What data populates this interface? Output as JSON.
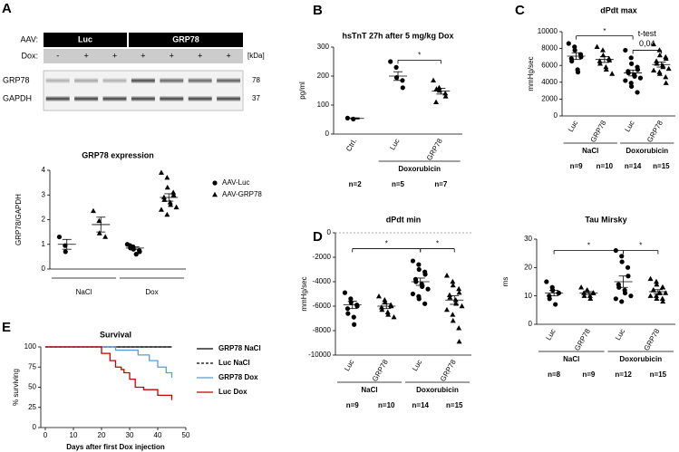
{
  "panel_labels": [
    "A",
    "B",
    "C",
    "D",
    "E"
  ],
  "blot": {
    "aav_label": "AAV:",
    "aav_groups": [
      "Luc",
      "GRP78"
    ],
    "dox_label": "Dox:",
    "dox": [
      "-",
      "+",
      "+",
      "+",
      "+",
      "+",
      "+"
    ],
    "kda": "[kDa]",
    "rows": [
      {
        "label": "GRP78",
        "kda": "78"
      },
      {
        "label": "GAPDH",
        "kda": "37"
      }
    ]
  },
  "chart_data": [
    {
      "type": "dotplot",
      "title": "GRP78 expression",
      "y_label": "GRP78/GAPDH",
      "categories": [
        null,
        null,
        null,
        null
      ],
      "category_groups": [
        "NaCl",
        "NaCl",
        "Dox",
        "Dox"
      ],
      "markers": [
        "circle",
        "triangle",
        "circle",
        "triangle"
      ],
      "color": "#000000",
      "points": [
        [
          1.3,
          0.95,
          0.7
        ],
        [
          2.35,
          1.95,
          1.45,
          1.3
        ],
        [
          1.0,
          0.9,
          0.8,
          0.75,
          0.7,
          0.95,
          0.85,
          0.6
        ],
        [
          3.9,
          3.7,
          3.3,
          3.1,
          3.0,
          2.9,
          2.8,
          2.7,
          2.6,
          2.5,
          2.4,
          2.2
        ]
      ],
      "means": [
        1.0,
        1.8,
        0.85,
        2.9
      ],
      "errors": [
        0.2,
        0.3,
        0.05,
        0.15
      ],
      "ylim": [
        0,
        4
      ],
      "yticks": [
        0,
        1,
        2,
        3,
        4
      ],
      "legend": [
        {
          "label": "AAV-Luc",
          "marker": "circle"
        },
        {
          "label": "AAV-GRP78",
          "marker": "triangle"
        }
      ]
    },
    {
      "type": "dotplot",
      "title": "hsTnT 27h after 5 mg/kg Dox",
      "y_label": "pg/ml",
      "categories": [
        "Ctrl.",
        "Luc",
        "GRP78"
      ],
      "category_groups": [
        null,
        "Doxorubicin",
        "Doxorubicin"
      ],
      "n_labels": [
        "n=2",
        "n=5",
        "n=7"
      ],
      "markers": [
        "circle",
        "circle",
        "triangle"
      ],
      "color": "#000000",
      "points": [
        [
          55,
          52
        ],
        [
          250,
          230,
          195,
          185,
          160
        ],
        [
          185,
          160,
          150,
          140,
          130,
          110,
          155
        ]
      ],
      "means": [
        54,
        200,
        148
      ],
      "errors": [
        2,
        15,
        10
      ],
      "ylim": [
        0,
        300
      ],
      "yticks": [
        0,
        100,
        200,
        300
      ],
      "brackets": [
        {
          "from": 1,
          "to": 2,
          "y": 255,
          "label": "*"
        }
      ]
    },
    {
      "type": "dotplot",
      "title": "dPdt max",
      "y_label": "mmHg/sec",
      "categories": [
        "Luc",
        "GRP78",
        "Luc",
        "GRP78"
      ],
      "category_groups": [
        "NaCl",
        "NaCl",
        "Doxorubicin",
        "Doxorubicin"
      ],
      "n_labels": [
        "n=9",
        "n=10",
        "n=14",
        "n=15"
      ],
      "markers": [
        "circle",
        "triangle",
        "circle",
        "triangle"
      ],
      "color": "#000000",
      "points": [
        [
          8600,
          8200,
          7800,
          7300,
          7000,
          6800,
          6500,
          5500,
          5200
        ],
        [
          8200,
          7800,
          7200,
          6800,
          6600,
          6500,
          6200,
          5800,
          5500,
          5000
        ],
        [
          7800,
          6900,
          6200,
          5800,
          5500,
          5300,
          5100,
          4900,
          4700,
          4500,
          4200,
          3900,
          3500,
          2800
        ],
        [
          8500,
          7800,
          7200,
          7000,
          6800,
          6500,
          6200,
          6000,
          5800,
          5600,
          5400,
          5200,
          5000,
          4600,
          3900
        ]
      ],
      "means": [
        7100,
        6700,
        5100,
        6100
      ],
      "errors": [
        400,
        350,
        350,
        300
      ],
      "ylim": [
        0,
        10000
      ],
      "yticks": [
        0,
        2000,
        4000,
        6000,
        8000,
        10000
      ],
      "brackets": [
        {
          "from": 0,
          "to": 2,
          "y": 9500,
          "label": "*"
        },
        {
          "from": 2,
          "to": 3,
          "y": 7800,
          "label": "t-test",
          "sublabel": "0,04"
        }
      ]
    },
    {
      "type": "dotplot",
      "title": "dPdt min",
      "y_label": "mmHg/sec",
      "categories": [
        "Luc",
        "GRP78",
        "Luc",
        "GRP78"
      ],
      "category_groups": [
        "NaCl",
        "NaCl",
        "Doxorubicin",
        "Doxorubicin"
      ],
      "n_labels": [
        "n=9",
        "n=10",
        "n=14",
        "n=15"
      ],
      "markers": [
        "circle",
        "triangle",
        "circle",
        "triangle"
      ],
      "color": "#000000",
      "points": [
        [
          -4900,
          -5400,
          -5700,
          -5900,
          -6000,
          -6200,
          -6600,
          -6900,
          -7500
        ],
        [
          -5200,
          -5500,
          -5700,
          -5900,
          -6000,
          -6100,
          -6300,
          -6500,
          -6700,
          -6900
        ],
        [
          -2300,
          -2600,
          -3000,
          -3200,
          -3400,
          -3800,
          -4000,
          -4200,
          -4400,
          -4600,
          -5000,
          -5200,
          -5400,
          -5800
        ],
        [
          -3500,
          -4000,
          -4300,
          -4600,
          -4900,
          -5100,
          -5300,
          -5500,
          -5800,
          -6000,
          -6300,
          -6700,
          -7200,
          -7800,
          -8900
        ]
      ],
      "means": [
        -5900,
        -6000,
        -4000,
        -5500
      ],
      "errors": [
        300,
        200,
        300,
        350
      ],
      "ylim": [
        -10000,
        0
      ],
      "yticks": [
        -10000,
        -8000,
        -6000,
        -4000,
        -2000,
        0
      ],
      "zero_line": true,
      "brackets": [
        {
          "from": 0,
          "to": 2,
          "y": -1300,
          "label": "*"
        },
        {
          "from": 2,
          "to": 3,
          "y": -1300,
          "label": "*"
        }
      ]
    },
    {
      "type": "dotplot",
      "title": "Tau Mirsky",
      "y_label": "ms",
      "categories": [
        "Luc",
        "GRP78",
        "Luc",
        "GRP78"
      ],
      "category_groups": [
        "NaCl",
        "NaCl",
        "Doxorubicin",
        "Doxorubicin"
      ],
      "n_labels": [
        "n=8",
        "n=9",
        "n=12",
        "n=15"
      ],
      "markers": [
        "circle",
        "triangle",
        "circle",
        "triangle"
      ],
      "color": "#000000",
      "points": [
        [
          15,
          13,
          12,
          11,
          11,
          10,
          9,
          7
        ],
        [
          13,
          12,
          12,
          11,
          11,
          11,
          10,
          10,
          9
        ],
        [
          26,
          24,
          22,
          20,
          17,
          14,
          13,
          12,
          11,
          10,
          9,
          8
        ],
        [
          16,
          15,
          14,
          13,
          13,
          12,
          12,
          11,
          11,
          11,
          10,
          10,
          9,
          9,
          8
        ]
      ],
      "means": [
        11,
        11,
        15,
        11.5
      ],
      "errors": [
        1,
        0.5,
        2,
        0.7
      ],
      "ylim": [
        0,
        30
      ],
      "yticks": [
        0,
        10,
        20,
        30
      ],
      "brackets": [
        {
          "from": 0,
          "to": 2,
          "y": 26,
          "label": "*"
        },
        {
          "from": 2,
          "to": 3,
          "y": 26,
          "label": "*"
        }
      ]
    },
    {
      "type": "survival",
      "title": "Survival",
      "x_label": "Days after first Dox injection",
      "y_label": "% surviving",
      "xlim": [
        0,
        50
      ],
      "xticks": [
        0,
        10,
        20,
        30,
        40,
        50
      ],
      "ylim": [
        0,
        100
      ],
      "yticks": [
        0,
        25,
        50,
        75,
        100
      ],
      "series": [
        {
          "name": "GRP78 NaCl",
          "color": "#000000",
          "dashed": false,
          "x": [
            0,
            45
          ],
          "values": [
            100,
            100
          ]
        },
        {
          "name": "Luc NaCl",
          "color": "#000000",
          "dashed": true,
          "x": [
            0,
            45
          ],
          "values": [
            100,
            100
          ]
        },
        {
          "name": "GRP78 Dox",
          "color": "#5b9bd5",
          "dashed": false,
          "x": [
            0,
            25,
            33,
            37,
            40,
            43,
            45
          ],
          "values": [
            100,
            96,
            90,
            83,
            75,
            68,
            62
          ]
        },
        {
          "name": "Luc Dox",
          "color": "#c00000",
          "dashed": false,
          "x": [
            0,
            20,
            23,
            25,
            27,
            28,
            30,
            32,
            35,
            40,
            45
          ],
          "values": [
            100,
            92,
            83,
            75,
            72,
            68,
            60,
            50,
            47,
            40,
            34
          ]
        }
      ]
    }
  ]
}
